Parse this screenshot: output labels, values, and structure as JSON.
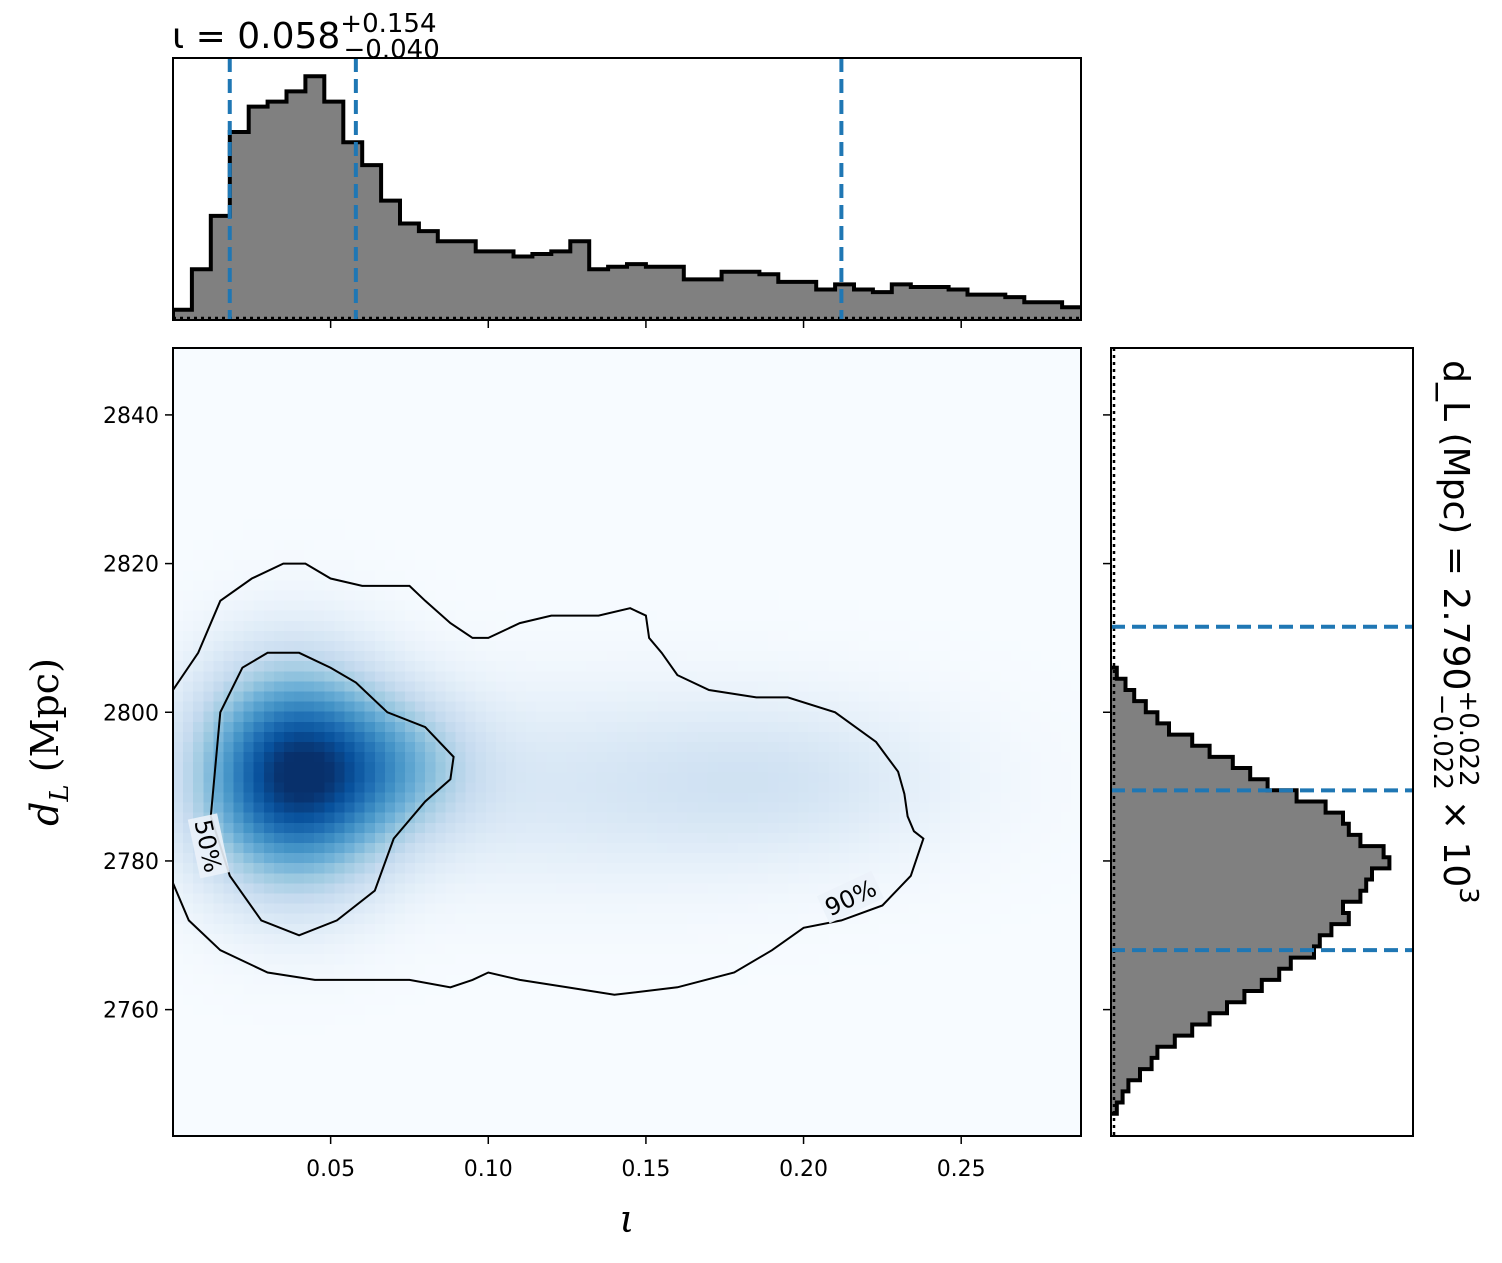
{
  "chart_data": [
    {
      "type": "heatmap",
      "panel": "joint",
      "xlabel": "ι",
      "ylabel": "d_L (Mpc)",
      "xlim": [
        0.0,
        0.288
      ],
      "ylim": [
        2743,
        2849
      ],
      "xticks": [
        "0.05",
        "0.10",
        "0.15",
        "0.20",
        "0.25"
      ],
      "xtick_values": [
        0.05,
        0.1,
        0.15,
        0.2,
        0.25
      ],
      "yticks": [
        "2760",
        "2780",
        "2800",
        "2820",
        "2840"
      ],
      "ytick_values": [
        2760,
        2780,
        2800,
        2820,
        2840
      ],
      "colormap": "Blues",
      "density_peaks": [
        {
          "x": 0.038,
          "y": 2791.5,
          "sx": 0.02,
          "sy": 9.5,
          "w": 1.0
        },
        {
          "x": 0.07,
          "y": 2793.0,
          "sx": 0.018,
          "sy": 6.5,
          "w": 0.3
        },
        {
          "x": 0.13,
          "y": 2790.0,
          "sx": 0.06,
          "sy": 9.0,
          "w": 0.12
        },
        {
          "x": 0.195,
          "y": 2791.0,
          "sx": 0.035,
          "sy": 7.0,
          "w": 0.1
        }
      ],
      "contours": [
        {
          "label": "50%",
          "points": [
            [
              0.012,
              2786
            ],
            [
              0.015,
              2800
            ],
            [
              0.022,
              2806
            ],
            [
              0.03,
              2808
            ],
            [
              0.04,
              2808
            ],
            [
              0.05,
              2806
            ],
            [
              0.058,
              2804
            ],
            [
              0.068,
              2800
            ],
            [
              0.08,
              2798
            ],
            [
              0.089,
              2794
            ],
            [
              0.088,
              2791
            ],
            [
              0.08,
              2788
            ],
            [
              0.07,
              2783
            ],
            [
              0.064,
              2776
            ],
            [
              0.052,
              2772
            ],
            [
              0.04,
              2770
            ],
            [
              0.028,
              2772
            ],
            [
              0.018,
              2778
            ],
            [
              0.012,
              2786
            ]
          ]
        },
        {
          "label": "90%",
          "points": [
            [
              0.0,
              2803
            ],
            [
              0.008,
              2808
            ],
            [
              0.015,
              2815
            ],
            [
              0.025,
              2818
            ],
            [
              0.035,
              2820
            ],
            [
              0.042,
              2820
            ],
            [
              0.05,
              2818
            ],
            [
              0.06,
              2817
            ],
            [
              0.075,
              2817
            ],
            [
              0.08,
              2815
            ],
            [
              0.088,
              2812
            ],
            [
              0.095,
              2810
            ],
            [
              0.1,
              2810
            ],
            [
              0.11,
              2812
            ],
            [
              0.12,
              2813
            ],
            [
              0.135,
              2813
            ],
            [
              0.145,
              2814
            ],
            [
              0.15,
              2813
            ],
            [
              0.151,
              2810
            ],
            [
              0.155,
              2808
            ],
            [
              0.16,
              2805
            ],
            [
              0.17,
              2803
            ],
            [
              0.185,
              2802
            ],
            [
              0.195,
              2802
            ],
            [
              0.21,
              2800
            ],
            [
              0.223,
              2796
            ],
            [
              0.23,
              2792
            ],
            [
              0.232,
              2789
            ],
            [
              0.233,
              2786
            ],
            [
              0.235,
              2784
            ],
            [
              0.238,
              2783
            ],
            [
              0.234,
              2778
            ],
            [
              0.225,
              2774
            ],
            [
              0.212,
              2772
            ],
            [
              0.2,
              2771
            ],
            [
              0.19,
              2768
            ],
            [
              0.178,
              2765
            ],
            [
              0.16,
              2763
            ],
            [
              0.14,
              2762
            ],
            [
              0.125,
              2763
            ],
            [
              0.11,
              2764
            ],
            [
              0.1,
              2765
            ],
            [
              0.095,
              2764
            ],
            [
              0.088,
              2763
            ],
            [
              0.075,
              2764
            ],
            [
              0.06,
              2764
            ],
            [
              0.045,
              2764
            ],
            [
              0.03,
              2765
            ],
            [
              0.015,
              2768
            ],
            [
              0.005,
              2772
            ],
            [
              0.0,
              2777
            ]
          ]
        }
      ],
      "contour_label_positions": [
        {
          "text": "50%",
          "x": 0.011,
          "y": 2782,
          "rotation": 78
        },
        {
          "text": "90%",
          "x": 0.215,
          "y": 2775,
          "rotation": -25
        }
      ]
    },
    {
      "type": "bar",
      "panel": "marginal-top",
      "histtype": "step",
      "title": "ι = 0.058",
      "title_sup": "+0.154",
      "title_sub": "−0.040",
      "x_edges_start": 0.0,
      "bin_width": 0.006,
      "values": [
        0.04,
        0.2,
        0.41,
        0.74,
        0.84,
        0.86,
        0.9,
        0.96,
        0.86,
        0.7,
        0.61,
        0.47,
        0.38,
        0.35,
        0.31,
        0.31,
        0.27,
        0.27,
        0.25,
        0.26,
        0.27,
        0.31,
        0.2,
        0.21,
        0.22,
        0.21,
        0.21,
        0.16,
        0.16,
        0.19,
        0.19,
        0.18,
        0.15,
        0.15,
        0.12,
        0.14,
        0.12,
        0.11,
        0.14,
        0.13,
        0.13,
        0.12,
        0.1,
        0.1,
        0.09,
        0.07,
        0.07,
        0.05,
        0.05,
        0.02,
        0.02,
        0.02
      ],
      "quantiles": [
        0.018,
        0.058,
        0.212
      ],
      "quantile_color": "#1f77b4",
      "xlim": [
        0.0,
        0.288
      ]
    },
    {
      "type": "bar",
      "panel": "marginal-right",
      "histtype": "step",
      "orientation": "horizontal",
      "title": "d_L (Mpc) = 2.790",
      "title_sup": "+0.022",
      "title_sub": "−0.022",
      "title_suffix": "× 10",
      "title_exp": "3",
      "y_edges_start": 2746.0,
      "bin_width": 1.5,
      "values": [
        0.02,
        0.04,
        0.06,
        0.1,
        0.14,
        0.16,
        0.22,
        0.28,
        0.34,
        0.4,
        0.46,
        0.52,
        0.58,
        0.62,
        0.7,
        0.72,
        0.76,
        0.82,
        0.8,
        0.86,
        0.88,
        0.9,
        0.96,
        0.94,
        0.86,
        0.82,
        0.8,
        0.74,
        0.64,
        0.54,
        0.48,
        0.42,
        0.34,
        0.28,
        0.2,
        0.16,
        0.12,
        0.08,
        0.05,
        0.02
      ],
      "quantiles": [
        2768.0,
        2789.5,
        2811.5
      ],
      "quantile_color": "#1f77b4",
      "ylim": [
        2743,
        2849
      ]
    }
  ]
}
